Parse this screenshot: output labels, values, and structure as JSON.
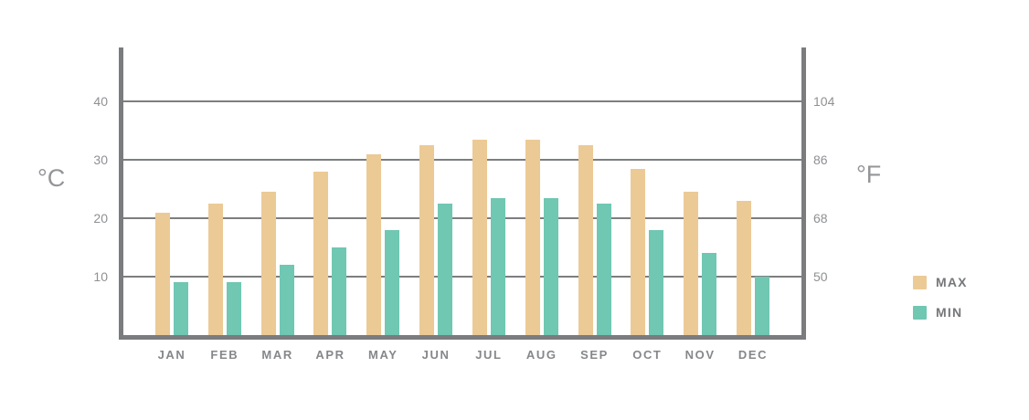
{
  "chart_data": {
    "type": "bar",
    "title": "",
    "categories": [
      "JAN",
      "FEB",
      "MAR",
      "APR",
      "MAY",
      "JUN",
      "JUL",
      "AUG",
      "SEP",
      "OCT",
      "NOV",
      "DEC"
    ],
    "series": [
      {
        "name": "MAX",
        "color": "#ecca96",
        "values": [
          21,
          22.5,
          24.5,
          28,
          31,
          32.5,
          33.5,
          33.5,
          32.5,
          28.5,
          24.5,
          23
        ]
      },
      {
        "name": "MIN",
        "color": "#70c7b2",
        "values": [
          9,
          9,
          12,
          15,
          18,
          22.5,
          23.5,
          23.5,
          22.5,
          18,
          14,
          10
        ]
      }
    ],
    "left_axis": {
      "unit": "°C",
      "ticks": [
        "40",
        "30",
        "20",
        "10"
      ],
      "tick_values": [
        40,
        30,
        20,
        10
      ]
    },
    "right_axis": {
      "unit": "°F",
      "ticks": [
        "104",
        "86",
        "68",
        "50"
      ]
    },
    "ylim": [
      0,
      49.2
    ],
    "grid": true,
    "legend_position": "right",
    "colors": {
      "axis": "#7b7c7e",
      "gridline": "#7d7e80",
      "tick_text": "#8f9093",
      "month_text": "#85878a",
      "legend_text": "#76777a",
      "background": "#ffffff"
    }
  },
  "legend": {
    "items": [
      {
        "label": "MAX",
        "color": "#ecca96"
      },
      {
        "label": "MIN",
        "color": "#70c7b2"
      }
    ]
  }
}
